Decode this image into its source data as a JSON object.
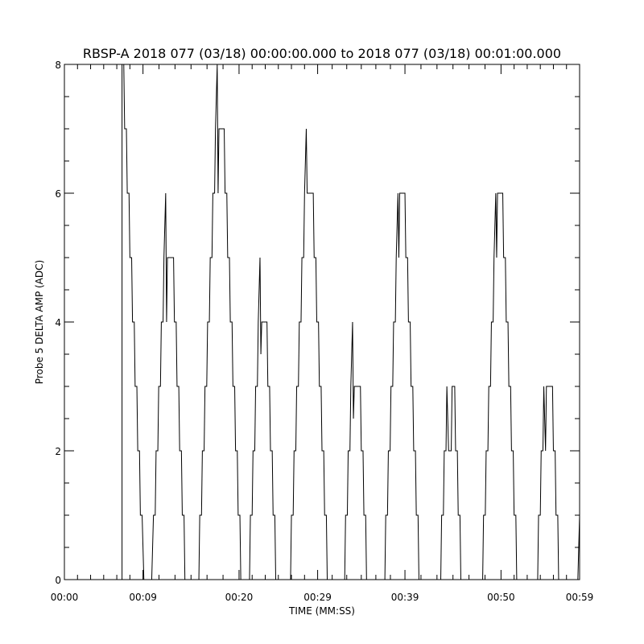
{
  "chart_data": {
    "type": "line",
    "title": "RBSP-A 2018 077 (03/18) 00:00:00.000 to 2018 077 (03/18) 00:01:00.000",
    "xlabel": "TIME (MM:SS)",
    "ylabel": "Probe 5 DELTA AMP (ADC)",
    "xlim": [
      "00:00",
      "00:59"
    ],
    "ylim": [
      0,
      8
    ],
    "x_tick_labels": [
      "00:00",
      "00:09",
      "00:20",
      "00:29",
      "00:39",
      "00:50",
      "00:59"
    ],
    "y_tick_labels": [
      "0",
      "2",
      "4",
      "6",
      "8"
    ],
    "grid": false,
    "series": [
      {
        "points": [
          [
            "00:00.0",
            0
          ],
          [
            "00:06.6",
            0
          ],
          [
            "00:06.6",
            8
          ],
          [
            "00:06.8",
            8
          ],
          [
            "00:06.9",
            7
          ],
          [
            "00:07.1",
            7
          ],
          [
            "00:07.2",
            6
          ],
          [
            "00:07.4",
            6
          ],
          [
            "00:07.5",
            5
          ],
          [
            "00:07.7",
            5
          ],
          [
            "00:07.8",
            4
          ],
          [
            "00:08.0",
            4
          ],
          [
            "00:08.1",
            3
          ],
          [
            "00:08.3",
            3
          ],
          [
            "00:08.4",
            2
          ],
          [
            "00:08.6",
            2
          ],
          [
            "00:08.7",
            1
          ],
          [
            "00:08.9",
            1
          ],
          [
            "00:09.0",
            0.5
          ],
          [
            "00:09.1",
            0
          ],
          [
            "00:10.0",
            0
          ],
          [
            "00:10.2",
            1
          ],
          [
            "00:10.4",
            1
          ],
          [
            "00:10.5",
            2
          ],
          [
            "00:10.7",
            2
          ],
          [
            "00:10.8",
            3
          ],
          [
            "00:11.0",
            3
          ],
          [
            "00:11.1",
            4
          ],
          [
            "00:11.3",
            4
          ],
          [
            "00:11.4",
            5
          ],
          [
            "00:11.6",
            6
          ],
          [
            "00:11.7",
            4
          ],
          [
            "00:11.8",
            5
          ],
          [
            "00:12.5",
            5
          ],
          [
            "00:12.6",
            4
          ],
          [
            "00:12.8",
            4
          ],
          [
            "00:12.9",
            3
          ],
          [
            "00:13.1",
            3
          ],
          [
            "00:13.2",
            2
          ],
          [
            "00:13.4",
            2
          ],
          [
            "00:13.5",
            1
          ],
          [
            "00:13.7",
            1
          ],
          [
            "00:13.8",
            0
          ],
          [
            "00:15.4",
            0
          ],
          [
            "00:15.5",
            1
          ],
          [
            "00:15.7",
            1
          ],
          [
            "00:15.8",
            2
          ],
          [
            "00:16.0",
            2
          ],
          [
            "00:16.1",
            3
          ],
          [
            "00:16.3",
            3
          ],
          [
            "00:16.4",
            4
          ],
          [
            "00:16.6",
            4
          ],
          [
            "00:16.7",
            5
          ],
          [
            "00:16.9",
            5
          ],
          [
            "00:17.0",
            6
          ],
          [
            "00:17.2",
            6
          ],
          [
            "00:17.3",
            7
          ],
          [
            "00:17.5",
            8
          ],
          [
            "00:17.6",
            6
          ],
          [
            "00:17.7",
            7
          ],
          [
            "00:18.3",
            7
          ],
          [
            "00:18.4",
            6
          ],
          [
            "00:18.6",
            6
          ],
          [
            "00:18.7",
            5
          ],
          [
            "00:18.9",
            5
          ],
          [
            "00:19.0",
            4
          ],
          [
            "00:19.2",
            4
          ],
          [
            "00:19.3",
            3
          ],
          [
            "00:19.5",
            3
          ],
          [
            "00:19.6",
            2
          ],
          [
            "00:19.8",
            2
          ],
          [
            "00:19.9",
            1
          ],
          [
            "00:20.1",
            1
          ],
          [
            "00:20.2",
            0
          ],
          [
            "00:21.2",
            0
          ],
          [
            "00:21.3",
            1
          ],
          [
            "00:21.5",
            1
          ],
          [
            "00:21.6",
            2
          ],
          [
            "00:21.8",
            2
          ],
          [
            "00:21.9",
            3
          ],
          [
            "00:22.1",
            3
          ],
          [
            "00:22.2",
            4
          ],
          [
            "00:22.4",
            5
          ],
          [
            "00:22.5",
            3.5
          ],
          [
            "00:22.6",
            4
          ],
          [
            "00:23.2",
            4
          ],
          [
            "00:23.3",
            3
          ],
          [
            "00:23.5",
            3
          ],
          [
            "00:23.6",
            2
          ],
          [
            "00:23.8",
            2
          ],
          [
            "00:23.9",
            1
          ],
          [
            "00:24.1",
            1
          ],
          [
            "00:24.2",
            0
          ],
          [
            "00:25.9",
            0
          ],
          [
            "00:26.0",
            1
          ],
          [
            "00:26.2",
            1
          ],
          [
            "00:26.3",
            2
          ],
          [
            "00:26.5",
            2
          ],
          [
            "00:26.6",
            3
          ],
          [
            "00:26.8",
            3
          ],
          [
            "00:26.9",
            4
          ],
          [
            "00:27.1",
            4
          ],
          [
            "00:27.2",
            5
          ],
          [
            "00:27.4",
            5
          ],
          [
            "00:27.5",
            6
          ],
          [
            "00:27.7",
            7
          ],
          [
            "00:27.8",
            6
          ],
          [
            "00:28.5",
            6
          ],
          [
            "00:28.6",
            5
          ],
          [
            "00:28.8",
            5
          ],
          [
            "00:28.9",
            4
          ],
          [
            "00:29.1",
            4
          ],
          [
            "00:29.2",
            3
          ],
          [
            "00:29.4",
            3
          ],
          [
            "00:29.5",
            2
          ],
          [
            "00:29.7",
            2
          ],
          [
            "00:29.8",
            1
          ],
          [
            "00:30.0",
            1
          ],
          [
            "00:30.1",
            0
          ],
          [
            "00:32.1",
            0
          ],
          [
            "00:32.2",
            1
          ],
          [
            "00:32.4",
            1
          ],
          [
            "00:32.5",
            2
          ],
          [
            "00:32.7",
            2
          ],
          [
            "00:32.8",
            3
          ],
          [
            "00:33.0",
            4
          ],
          [
            "00:33.1",
            2.5
          ],
          [
            "00:33.2",
            3
          ],
          [
            "00:33.9",
            3
          ],
          [
            "00:34.0",
            2
          ],
          [
            "00:34.2",
            2
          ],
          [
            "00:34.3",
            1
          ],
          [
            "00:34.5",
            1
          ],
          [
            "00:34.6",
            0
          ],
          [
            "00:36.7",
            0
          ],
          [
            "00:36.8",
            1
          ],
          [
            "00:37.0",
            1
          ],
          [
            "00:37.1",
            2
          ],
          [
            "00:37.3",
            2
          ],
          [
            "00:37.4",
            3
          ],
          [
            "00:37.6",
            3
          ],
          [
            "00:37.7",
            4
          ],
          [
            "00:37.9",
            4
          ],
          [
            "00:38.0",
            5
          ],
          [
            "00:38.2",
            6
          ],
          [
            "00:38.3",
            5
          ],
          [
            "00:38.4",
            6
          ],
          [
            "00:39.0",
            6
          ],
          [
            "00:39.1",
            5
          ],
          [
            "00:39.3",
            5
          ],
          [
            "00:39.4",
            4
          ],
          [
            "00:39.6",
            4
          ],
          [
            "00:39.7",
            3
          ],
          [
            "00:39.9",
            3
          ],
          [
            "00:40.0",
            2
          ],
          [
            "00:40.2",
            2
          ],
          [
            "00:40.3",
            1
          ],
          [
            "00:40.5",
            1
          ],
          [
            "00:40.6",
            0
          ],
          [
            "00:43.1",
            0
          ],
          [
            "00:43.2",
            1
          ],
          [
            "00:43.4",
            1
          ],
          [
            "00:43.5",
            2
          ],
          [
            "00:43.7",
            2
          ],
          [
            "00:43.8",
            3
          ],
          [
            "00:44.0",
            2
          ],
          [
            "00:44.3",
            2
          ],
          [
            "00:44.4",
            3
          ],
          [
            "00:44.7",
            3
          ],
          [
            "00:44.8",
            2
          ],
          [
            "00:45.0",
            2
          ],
          [
            "00:45.1",
            1
          ],
          [
            "00:45.3",
            1
          ],
          [
            "00:45.4",
            0
          ],
          [
            "00:47.9",
            0
          ],
          [
            "00:48.0",
            1
          ],
          [
            "00:48.2",
            1
          ],
          [
            "00:48.3",
            2
          ],
          [
            "00:48.5",
            2
          ],
          [
            "00:48.6",
            3
          ],
          [
            "00:48.8",
            3
          ],
          [
            "00:48.9",
            4
          ],
          [
            "00:49.1",
            4
          ],
          [
            "00:49.2",
            5
          ],
          [
            "00:49.4",
            6
          ],
          [
            "00:49.5",
            5
          ],
          [
            "00:49.6",
            6
          ],
          [
            "00:50.2",
            6
          ],
          [
            "00:50.3",
            5
          ],
          [
            "00:50.5",
            5
          ],
          [
            "00:50.6",
            4
          ],
          [
            "00:50.8",
            4
          ],
          [
            "00:50.9",
            3
          ],
          [
            "00:51.1",
            3
          ],
          [
            "00:51.2",
            2
          ],
          [
            "00:51.4",
            2
          ],
          [
            "00:51.5",
            1
          ],
          [
            "00:51.7",
            1
          ],
          [
            "00:51.8",
            0
          ],
          [
            "00:54.2",
            0
          ],
          [
            "00:54.3",
            1
          ],
          [
            "00:54.5",
            1
          ],
          [
            "00:54.6",
            2
          ],
          [
            "00:54.8",
            2
          ],
          [
            "00:54.9",
            3
          ],
          [
            "00:55.1",
            2
          ],
          [
            "00:55.2",
            3
          ],
          [
            "00:55.9",
            3
          ],
          [
            "00:56.0",
            2
          ],
          [
            "00:56.2",
            2
          ],
          [
            "00:56.3",
            1
          ],
          [
            "00:56.5",
            1
          ],
          [
            "00:56.6",
            0
          ],
          [
            "00:58.8",
            0
          ],
          [
            "00:58.9",
            0.5
          ],
          [
            "00:59.0",
            1
          ]
        ]
      }
    ]
  }
}
